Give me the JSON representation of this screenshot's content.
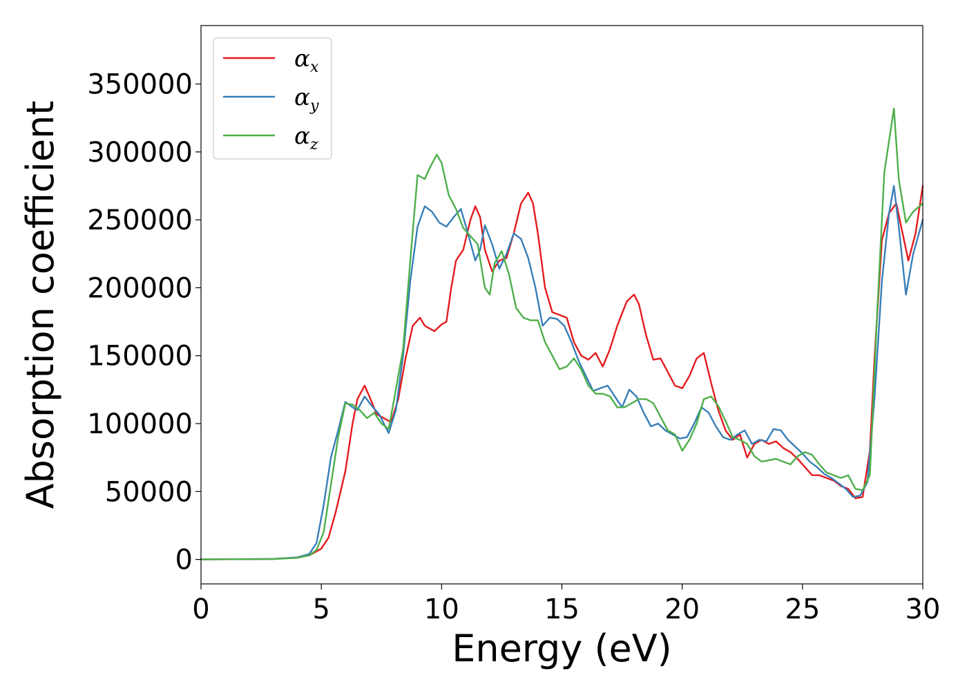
{
  "chart_data": {
    "type": "line",
    "title": "",
    "xlabel": "Energy (eV)",
    "ylabel": "Absorption coefficient",
    "xlim": [
      0,
      30
    ],
    "ylim": [
      -18000,
      393000
    ],
    "xticks": [
      0,
      5,
      10,
      15,
      20,
      25,
      30
    ],
    "yticks": [
      0,
      50000,
      100000,
      150000,
      200000,
      250000,
      300000,
      350000
    ],
    "grid": false,
    "legend_position": "top-left",
    "series": [
      {
        "name": "α_x",
        "symbol": "α",
        "subscript": "x",
        "color": "#e41a1c",
        "x": [
          0,
          3,
          4,
          4.5,
          5,
          5.3,
          5.6,
          6,
          6.3,
          6.5,
          6.8,
          7,
          7.3,
          7.6,
          7.9,
          8.2,
          8.5,
          8.8,
          9.1,
          9.3,
          9.7,
          10,
          10.2,
          10.4,
          10.6,
          10.9,
          11.2,
          11.4,
          11.6,
          11.8,
          12.1,
          12.4,
          12.7,
          13,
          13.3,
          13.6,
          13.8,
          14,
          14.3,
          14.6,
          14.9,
          15.2,
          15.5,
          15.8,
          16.1,
          16.4,
          16.7,
          17,
          17.3,
          17.7,
          18,
          18.2,
          18.5,
          18.8,
          19.1,
          19.4,
          19.7,
          20,
          20.3,
          20.6,
          20.9,
          21.2,
          21.5,
          21.8,
          22.1,
          22.4,
          22.7,
          23,
          23.3,
          23.6,
          23.9,
          24.2,
          24.5,
          24.8,
          25.1,
          25.4,
          25.7,
          26,
          26.3,
          26.6,
          26.9,
          27.2,
          27.5,
          27.8,
          28,
          28.3,
          28.6,
          28.9,
          29.1,
          29.4,
          29.7,
          30
        ],
        "y": [
          0,
          300,
          1500,
          3000,
          8000,
          16000,
          35000,
          65000,
          100000,
          118000,
          128000,
          120000,
          107000,
          104000,
          101000,
          118000,
          148000,
          172000,
          178000,
          172000,
          168000,
          173000,
          175000,
          200000,
          220000,
          228000,
          250000,
          260000,
          252000,
          228000,
          212000,
          220000,
          222000,
          240000,
          262000,
          270000,
          262000,
          240000,
          200000,
          182000,
          180000,
          178000,
          160000,
          150000,
          147000,
          152000,
          142000,
          155000,
          172000,
          190000,
          195000,
          188000,
          165000,
          147000,
          148000,
          138000,
          128000,
          126000,
          135000,
          148000,
          152000,
          130000,
          110000,
          95000,
          88000,
          92000,
          75000,
          85000,
          88000,
          85000,
          87000,
          82000,
          79000,
          74000,
          68000,
          62000,
          62000,
          60000,
          58000,
          54000,
          52000,
          45000,
          46000,
          80000,
          150000,
          235000,
          255000,
          262000,
          245000,
          220000,
          240000,
          275000
        ]
      },
      {
        "name": "α_y",
        "symbol": "α",
        "subscript": "y",
        "color": "#377eb8",
        "x": [
          0,
          3,
          4,
          4.5,
          4.8,
          5.1,
          5.4,
          5.7,
          6,
          6.3,
          6.5,
          6.8,
          7.1,
          7.4,
          7.8,
          8.1,
          8.4,
          8.7,
          9,
          9.3,
          9.6,
          9.9,
          10.2,
          10.5,
          10.8,
          11.1,
          11.4,
          11.6,
          11.8,
          12.1,
          12.4,
          12.7,
          13,
          13.3,
          13.6,
          13.9,
          14.2,
          14.5,
          14.8,
          15.1,
          15.4,
          15.7,
          16,
          16.3,
          16.6,
          16.9,
          17.2,
          17.5,
          17.8,
          18.1,
          18.4,
          18.7,
          19,
          19.3,
          19.6,
          19.9,
          20.2,
          20.5,
          20.8,
          21.1,
          21.4,
          21.7,
          22,
          22.3,
          22.6,
          22.9,
          23.2,
          23.5,
          23.8,
          24.1,
          24.4,
          24.7,
          25,
          25.3,
          25.6,
          25.9,
          26.2,
          26.5,
          26.8,
          27.1,
          27.4,
          27.7,
          28,
          28.3,
          28.6,
          28.8,
          29,
          29.3,
          29.6,
          30
        ],
        "y": [
          0,
          400,
          1500,
          4000,
          12000,
          40000,
          75000,
          95000,
          116000,
          112000,
          110000,
          120000,
          113000,
          107000,
          93000,
          110000,
          150000,
          205000,
          245000,
          260000,
          256000,
          248000,
          245000,
          252000,
          258000,
          240000,
          220000,
          228000,
          246000,
          232000,
          214000,
          225000,
          240000,
          236000,
          222000,
          200000,
          172000,
          178000,
          177000,
          172000,
          160000,
          146000,
          135000,
          124000,
          126000,
          128000,
          120000,
          112000,
          125000,
          120000,
          108000,
          98000,
          100000,
          95000,
          92000,
          89000,
          90000,
          100000,
          112000,
          108000,
          98000,
          90000,
          88000,
          92000,
          95000,
          85000,
          88000,
          87000,
          96000,
          95000,
          88000,
          83000,
          78000,
          72000,
          68000,
          63000,
          60000,
          56000,
          52000,
          46000,
          47000,
          57000,
          120000,
          205000,
          255000,
          275000,
          245000,
          195000,
          225000,
          250000
        ]
      },
      {
        "name": "α_z",
        "symbol": "α",
        "subscript": "z",
        "color": "#4daf4a",
        "x": [
          0,
          3,
          4,
          4.5,
          4.8,
          5.1,
          5.4,
          5.7,
          6,
          6.3,
          6.6,
          6.9,
          7.2,
          7.5,
          7.8,
          8.1,
          8.4,
          8.7,
          9,
          9.3,
          9.5,
          9.8,
          10,
          10.3,
          10.6,
          10.9,
          11.2,
          11.5,
          11.8,
          12,
          12.2,
          12.5,
          12.8,
          13.1,
          13.4,
          13.7,
          14,
          14.3,
          14.6,
          14.9,
          15.2,
          15.5,
          15.8,
          16.1,
          16.4,
          16.7,
          17,
          17.3,
          17.6,
          17.9,
          18.2,
          18.5,
          18.8,
          19.1,
          19.4,
          19.7,
          20,
          20.3,
          20.6,
          20.9,
          21.2,
          21.5,
          21.8,
          22.1,
          22.4,
          22.7,
          23,
          23.3,
          23.6,
          23.9,
          24.2,
          24.5,
          24.8,
          25.1,
          25.4,
          25.7,
          26,
          26.3,
          26.6,
          26.9,
          27.2,
          27.5,
          27.8,
          28.1,
          28.4,
          28.8,
          29,
          29.3,
          29.6,
          30
        ],
        "y": [
          0,
          300,
          1200,
          3000,
          7000,
          20000,
          55000,
          90000,
          115000,
          114000,
          110000,
          104000,
          108000,
          100000,
          96000,
          125000,
          155000,
          220000,
          283000,
          280000,
          288000,
          298000,
          292000,
          268000,
          258000,
          244000,
          238000,
          232000,
          200000,
          195000,
          218000,
          227000,
          210000,
          185000,
          178000,
          176000,
          176000,
          160000,
          150000,
          140000,
          142000,
          148000,
          140000,
          128000,
          122000,
          122000,
          120000,
          112000,
          112000,
          115000,
          118000,
          118000,
          115000,
          105000,
          95000,
          92000,
          80000,
          88000,
          100000,
          118000,
          120000,
          113000,
          102000,
          90000,
          88000,
          85000,
          76000,
          72000,
          73000,
          74000,
          72000,
          70000,
          76000,
          79000,
          77000,
          70000,
          64000,
          62000,
          60000,
          62000,
          52000,
          51000,
          62000,
          180000,
          285000,
          332000,
          280000,
          248000,
          256000,
          262000
        ]
      }
    ]
  }
}
